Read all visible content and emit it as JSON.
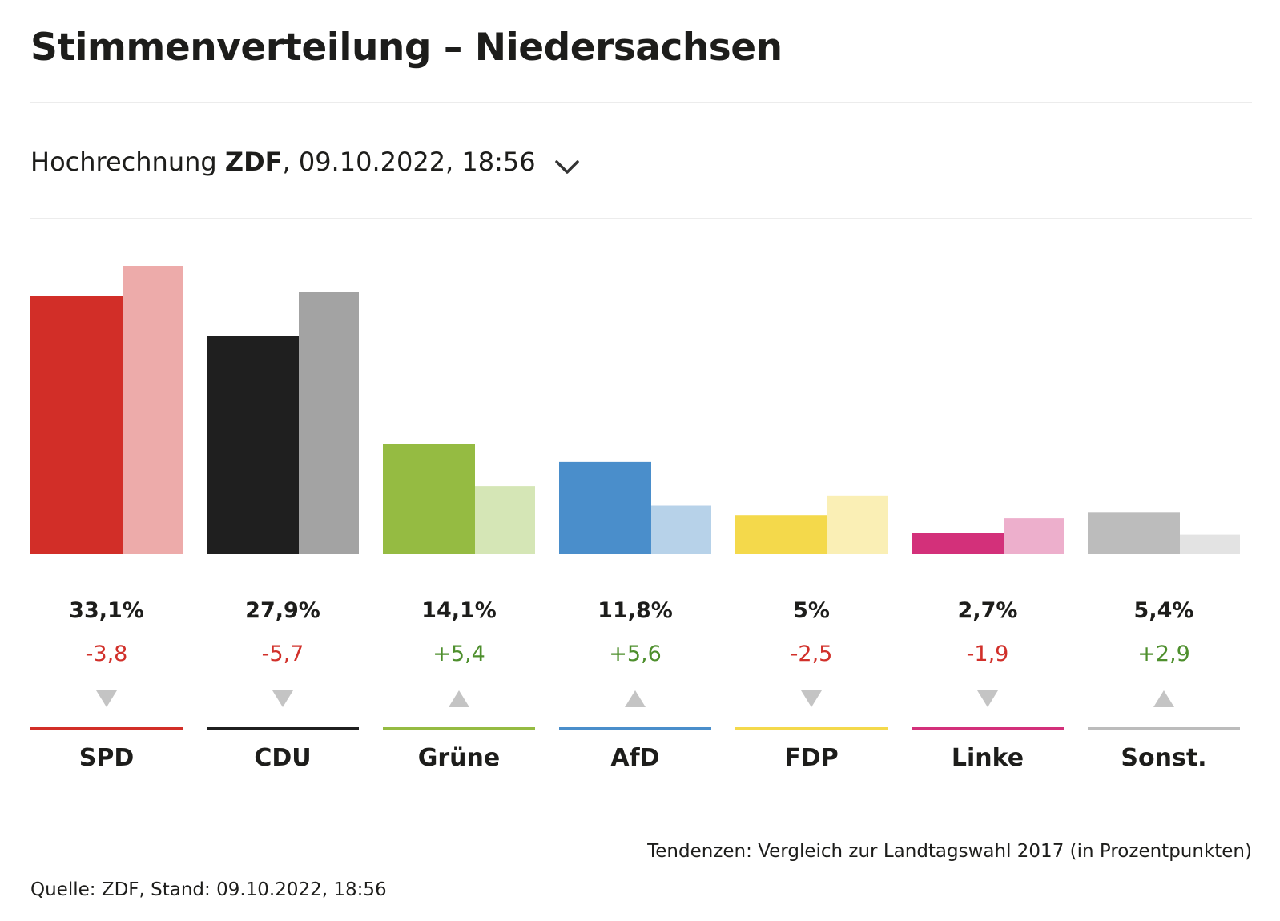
{
  "header": {
    "title": "Stimmenverteilung – Niedersachsen"
  },
  "selector": {
    "prefix": "Hochrechnung ",
    "source": "ZDF",
    "suffix": ", 09.10.2022, 18:56"
  },
  "footer": {
    "note": "Tendenzen: Vergleich zur Landtagswahl 2017 (in Prozentpunkten)",
    "source": "Quelle: ZDF, Stand: 09.10.2022, 18:56"
  },
  "colors": {
    "positive": "#4e8f2d",
    "negative": "#d1302a",
    "arrow": "#c4c4c4",
    "text": "#1d1d1b"
  },
  "chart_data": {
    "type": "bar",
    "title": "Stimmenverteilung – Niedersachsen",
    "categories": [
      "SPD",
      "CDU",
      "Grüne",
      "AfD",
      "FDP",
      "Linke",
      "Sonst."
    ],
    "series": [
      {
        "name": "Hochrechnung 2022",
        "values": [
          33.1,
          27.9,
          14.1,
          11.8,
          5,
          2.7,
          5.4
        ]
      },
      {
        "name": "Landtagswahl 2017",
        "values": [
          36.9,
          33.6,
          8.7,
          6.2,
          7.5,
          4.6,
          2.5
        ]
      }
    ],
    "value_labels": [
      "33,1%",
      "27,9%",
      "14,1%",
      "11,8%",
      "5%",
      "2,7%",
      "5,4%"
    ],
    "diff_labels": [
      "-3,8",
      "-5,7",
      "+5,4",
      "+5,6",
      "-2,5",
      "-1,9",
      "+2,9"
    ],
    "diff_values": [
      -3.8,
      -5.7,
      5.4,
      5.6,
      -2.5,
      -1.9,
      2.9
    ],
    "colors": [
      "#d22e28",
      "#1f1f1f",
      "#95bb42",
      "#4a8ecb",
      "#f4d94b",
      "#d3307a",
      "#bcbcbc"
    ],
    "colors_previous": [
      "#edabaa",
      "#a3a3a3",
      "#d5e6b6",
      "#b7d2e9",
      "#faefb5",
      "#edafcc",
      "#e3e3e3"
    ],
    "ylim": [
      0,
      36.9
    ],
    "xlabel": "",
    "ylabel": ""
  }
}
